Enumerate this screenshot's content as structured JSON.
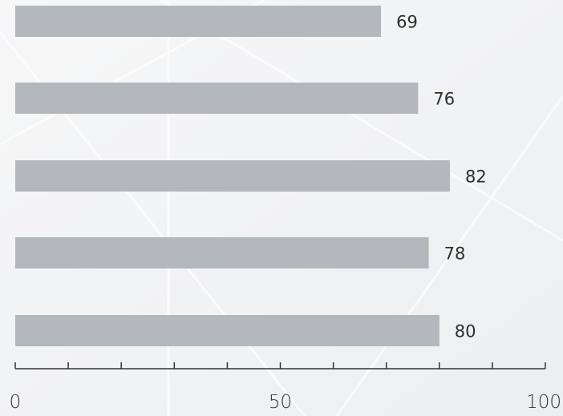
{
  "colors": {
    "bar": "#b3b8bc",
    "text": "#2d2d2d",
    "axis": "#333333",
    "background": "#f3f4f5"
  },
  "chart_data": {
    "type": "bar",
    "orientation": "horizontal",
    "values": [
      69,
      76,
      82,
      78,
      80
    ],
    "data_labels": [
      "69",
      "76",
      "82",
      "78",
      "80"
    ],
    "xlim": [
      0,
      100
    ],
    "x_ticks": [
      0,
      10,
      20,
      30,
      40,
      50,
      60,
      70,
      80,
      90,
      100
    ],
    "x_tick_labels": [
      {
        "value": 0,
        "label": "0"
      },
      {
        "value": 50,
        "label": "50"
      },
      {
        "value": 100,
        "label": "100"
      }
    ],
    "title": "",
    "xlabel": "",
    "ylabel": "",
    "grid": false,
    "legend": "none"
  }
}
